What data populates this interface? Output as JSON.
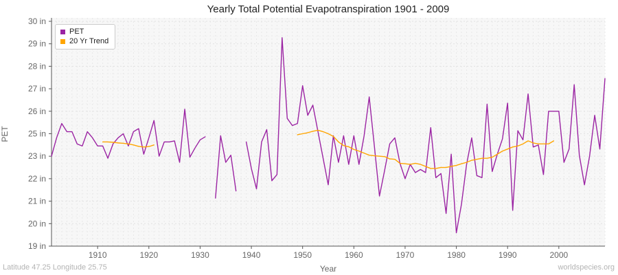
{
  "footer": {
    "left": "Latitude 47.25 Longitude 25.75",
    "right": "worldspecies.org"
  },
  "chart_data": {
    "type": "line",
    "title": "Yearly Total Potential Evapotranspiration 1901 - 2009",
    "xlabel": "Year",
    "ylabel": "PET",
    "y_unit": "in",
    "x_start": 1901,
    "x_end": 2009,
    "ylim": [
      19,
      30
    ],
    "y_tick_labels_bottom_to_top": [
      "19 in",
      "20 in",
      "21 in",
      "22 in",
      "23 in",
      "25 in",
      "26 in",
      "27 in",
      "28 in",
      "29 in",
      "30 in"
    ],
    "x_tick_years": [
      1910,
      1920,
      1930,
      1940,
      1950,
      1960,
      1970,
      1980,
      1990,
      2000
    ],
    "grid": "light dashed vertical lines every year and dashed horizontal lines",
    "legend_position": "top-left",
    "gaps_years": [
      1932,
      1938
    ],
    "series": [
      {
        "name": "PET",
        "color": "#9B24A3",
        "start_year": 1901,
        "values": [
          23.4,
          24.3,
          25.0,
          24.6,
          24.6,
          24.0,
          23.9,
          24.6,
          24.3,
          23.9,
          23.9,
          23.3,
          24.0,
          24.3,
          24.5,
          23.9,
          24.6,
          24.75,
          23.5,
          24.3,
          25.15,
          23.4,
          24.1,
          24.1,
          24.15,
          23.1,
          25.7,
          23.35,
          23.8,
          24.2,
          24.35,
          null,
          21.35,
          24.4,
          23.1,
          23.45,
          21.7,
          null,
          24.1,
          22.8,
          21.8,
          24.1,
          24.7,
          22.2,
          22.5,
          29.2,
          25.25,
          24.9,
          25.0,
          26.85,
          25.4,
          25.9,
          24.6,
          23.3,
          22.0,
          24.4,
          23.1,
          24.4,
          23.0,
          24.4,
          23.0,
          24.4,
          26.3,
          23.9,
          21.45,
          22.7,
          24.0,
          24.3,
          23.05,
          22.3,
          23.0,
          22.6,
          22.75,
          22.6,
          24.8,
          22.35,
          22.55,
          20.6,
          23.5,
          19.65,
          21.05,
          23.0,
          24.3,
          22.45,
          22.35,
          25.95,
          22.65,
          23.5,
          24.25,
          26.0,
          20.75,
          24.65,
          24.2,
          26.45,
          23.85,
          23.95,
          22.5,
          25.6,
          25.6,
          25.6,
          23.1,
          23.75,
          26.9,
          23.45,
          22.0,
          23.4,
          25.4,
          23.75,
          27.2
        ]
      },
      {
        "name": "20 Yr Trend",
        "color": "#FFA500",
        "segments": [
          {
            "start_year": 1911,
            "values": [
              24.1,
              24.1,
              24.08,
              24.05,
              24.03,
              24.0,
              23.95,
              23.88,
              23.85,
              23.87,
              23.95
            ]
          },
          {
            "start_year": 1949,
            "values": [
              24.45,
              24.5,
              24.55,
              24.62,
              24.67,
              24.6,
              24.5,
              24.37,
              24.1,
              23.92,
              23.86,
              23.73,
              23.65,
              23.55,
              23.45,
              23.42,
              23.4,
              23.38,
              23.27,
              23.25,
              23.05,
              23.03,
              23.0,
              23.05,
              23.0,
              22.9,
              22.8,
              22.8,
              22.85,
              22.85,
              22.9,
              22.95,
              23.03,
              23.1,
              23.2,
              23.25,
              23.3,
              23.3,
              23.35,
              23.5,
              23.65,
              23.75,
              23.85,
              23.9,
              24.0,
              24.15,
              24.05,
              24.0,
              24.0,
              24.0,
              24.15
            ]
          }
        ]
      }
    ]
  }
}
